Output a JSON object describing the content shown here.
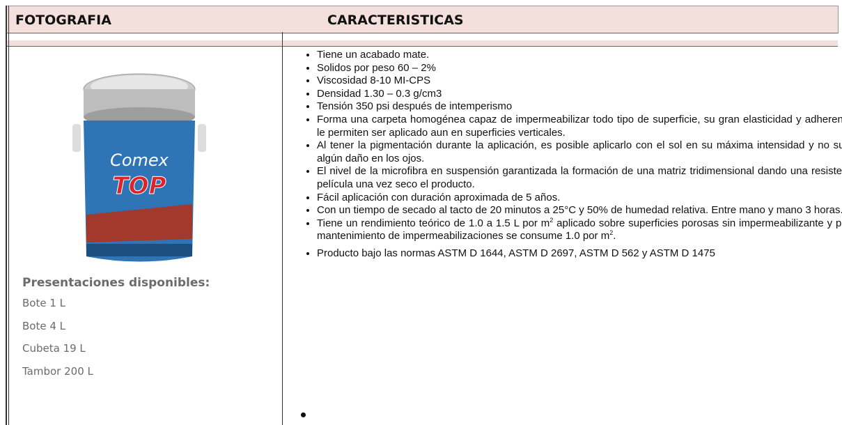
{
  "header": {
    "col1": "FOTOGRAFIA",
    "col2": "CARACTERISTICAS"
  },
  "image": {
    "brand": "Comex",
    "product": "TOP"
  },
  "presentaciones": {
    "title": "Presentaciones disponibles:",
    "items": [
      "Bote 1 L",
      "Bote 4 L",
      "Cubeta 19 L",
      "Tambor 200 L"
    ]
  },
  "caracteristicas": [
    [
      "Tiene un acabado mate."
    ],
    [
      "Solidos por peso 60 – 2%"
    ],
    [
      "Viscosidad 8-10 MI-CPS"
    ],
    [
      "Densidad 1.30 – 0.3 g/cm3"
    ],
    [
      "Tensión 350 psi después de intemperismo"
    ],
    [
      "Forma una carpeta homogénea capaz de impermeabilizar todo tipo de superficie, su gran elasticidad y adherencia le permiten ser aplicado aun en superficies verticales."
    ],
    [
      "Al tener la pigmentación durante la aplicación, es posible aplicarlo con el sol en su máxima intensidad y no sufrir algún daño en los ojos."
    ],
    [
      "El nivel de la microfibra en suspensión garantizada la formación de una matriz tridimensional dando una resistente película una vez seco el producto."
    ],
    [
      "Fácil aplicación con duración aproximada de 5 años."
    ],
    [
      "Con un tiempo de secado al tacto de 20 minutos a 25°C y 50% de humedad relativa. Entre mano y mano 3 horas."
    ],
    [
      "Tiene un rendimiento teórico de 1.0 a 1.5 L por m",
      {
        "text": "2",
        "sup": true
      },
      " aplicado sobre superficies porosas sin impermeabilizante y para mantenimiento de impermeabilizaciones se consume 1.0 por m",
      {
        "text": "2",
        "sup": true
      },
      "."
    ],
    [
      "Producto bajo las normas ASTM D 1644, ASTM D 2697, ASTM D 562 y ASTM D 1475"
    ]
  ]
}
